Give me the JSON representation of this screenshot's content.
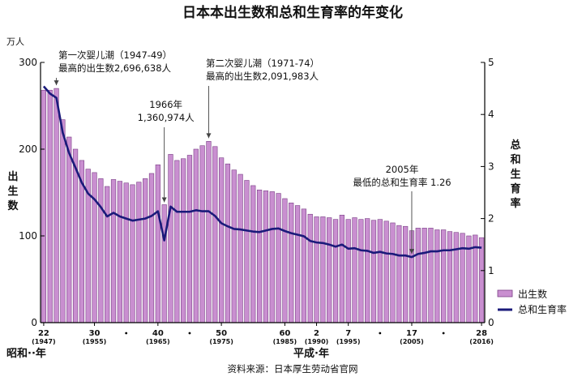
{
  "chart_data": {
    "type": "bar+line",
    "title": "日本本出生数和总和生育率的年变化",
    "y_left": {
      "unit": "万人",
      "label": "出生数",
      "ticks": [
        0,
        100,
        200,
        300
      ],
      "ylim": [
        0,
        300
      ]
    },
    "y_right": {
      "label": "总和生育率",
      "ticks": [
        0,
        1,
        2,
        3,
        4,
        5
      ],
      "ylim": [
        0,
        5
      ]
    },
    "x_era_left": "昭和··年",
    "x_era_right": "平成·年",
    "x_ticks": [
      {
        "year": 1947,
        "era": "22",
        "ad": "(1947)"
      },
      {
        "year": 1955,
        "era": "30",
        "ad": "(1955)"
      },
      {
        "year": 1965,
        "era": "40",
        "ad": "(1965)"
      },
      {
        "year": 1975,
        "era": "50",
        "ad": "(1975)"
      },
      {
        "year": 1985,
        "era": "60",
        "ad": "(1985)"
      },
      {
        "year": 1990,
        "era": "2",
        "ad": "(1990)"
      },
      {
        "year": 1995,
        "era": "7",
        "ad": "(1995)"
      },
      {
        "year": 2005,
        "era": "17",
        "ad": "(2005)"
      },
      {
        "year": 2016,
        "era": "28",
        "ad": "(2016)"
      }
    ],
    "x_dots": [
      1960,
      1970,
      2000,
      2010
    ],
    "years": [
      1947,
      1948,
      1949,
      1950,
      1951,
      1952,
      1953,
      1954,
      1955,
      1956,
      1957,
      1958,
      1959,
      1960,
      1961,
      1962,
      1963,
      1964,
      1965,
      1966,
      1967,
      1968,
      1969,
      1970,
      1971,
      1972,
      1973,
      1974,
      1975,
      1976,
      1977,
      1978,
      1979,
      1980,
      1981,
      1982,
      1983,
      1984,
      1985,
      1986,
      1987,
      1988,
      1989,
      1990,
      1991,
      1992,
      1993,
      1994,
      1995,
      1996,
      1997,
      1998,
      1999,
      2000,
      2001,
      2002,
      2003,
      2004,
      2005,
      2006,
      2007,
      2008,
      2009,
      2010,
      2011,
      2012,
      2013,
      2014,
      2015,
      2016
    ],
    "series": [
      {
        "name": "出生数",
        "axis": "left",
        "color": "#c98fd0",
        "values": [
          268,
          268,
          270,
          234,
          214,
          200,
          187,
          177,
          173,
          166,
          157,
          165,
          163,
          161,
          159,
          162,
          166,
          172,
          182,
          136,
          194,
          187,
          189,
          193,
          200,
          204,
          209,
          203,
          190,
          183,
          176,
          171,
          164,
          158,
          153,
          152,
          151,
          149,
          143,
          138,
          135,
          131,
          125,
          122,
          122,
          121,
          119,
          124,
          119,
          121,
          119,
          120,
          118,
          119,
          117,
          115,
          112,
          111,
          106,
          109,
          109,
          109,
          107,
          107,
          105,
          104,
          103,
          100,
          101,
          98
        ]
      },
      {
        "name": "总和生育率",
        "axis": "right",
        "color": "#1a1a7a",
        "values": [
          4.54,
          4.4,
          4.32,
          3.65,
          3.26,
          2.98,
          2.69,
          2.48,
          2.37,
          2.22,
          2.04,
          2.11,
          2.04,
          2.0,
          1.96,
          1.98,
          2.0,
          2.05,
          2.14,
          1.58,
          2.23,
          2.13,
          2.13,
          2.13,
          2.16,
          2.14,
          2.14,
          2.05,
          1.91,
          1.85,
          1.8,
          1.79,
          1.77,
          1.75,
          1.74,
          1.77,
          1.8,
          1.81,
          1.76,
          1.72,
          1.69,
          1.66,
          1.57,
          1.54,
          1.53,
          1.5,
          1.46,
          1.5,
          1.42,
          1.43,
          1.39,
          1.38,
          1.34,
          1.36,
          1.33,
          1.32,
          1.29,
          1.29,
          1.26,
          1.32,
          1.34,
          1.37,
          1.37,
          1.39,
          1.39,
          1.41,
          1.43,
          1.42,
          1.45,
          1.44
        ]
      }
    ],
    "annotations": [
      {
        "lines": [
          "第一次婴儿潮（1947-49）",
          "最高的出生数2,696,638人"
        ],
        "year": 1949
      },
      {
        "lines": [
          "第二次婴儿潮（1971-74）",
          "最高的出生数2,091,983人"
        ],
        "year": 1973
      },
      {
        "lines": [
          "1966年",
          "1,360,974人"
        ],
        "year": 1966
      },
      {
        "lines": [
          "2005年",
          "最低的总和生育率 1.26"
        ],
        "year": 2005
      }
    ],
    "legend": {
      "position": "bottom-right"
    },
    "source": "资料来源：日本厚生劳动省官网"
  }
}
